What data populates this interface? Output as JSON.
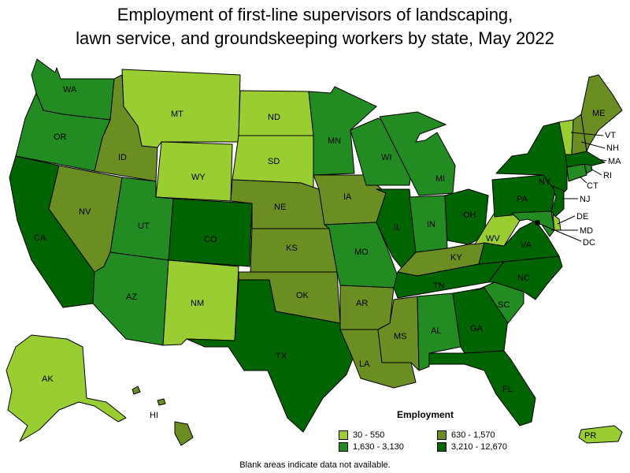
{
  "title_line1": "Employment of first-line supervisors of landscaping,",
  "title_line2": "lawn service, and groundskeeping workers by state, May 2022",
  "colors": {
    "c1": "#9acd32",
    "c2": "#6b8e23",
    "c3": "#228b22",
    "c4": "#006400"
  },
  "legend": {
    "title": "Employment",
    "items": [
      {
        "label": "30 - 550",
        "color": "#9acd32"
      },
      {
        "label": "630 - 1,570",
        "color": "#6b8e23"
      },
      {
        "label": "1,630 - 3,130",
        "color": "#228b22"
      },
      {
        "label": "3,210 - 12,670",
        "color": "#006400"
      }
    ]
  },
  "footnote": "Blank areas indicate data not available.",
  "state_labels": {
    "WA": "WA",
    "OR": "OR",
    "CA": "CA",
    "ID": "ID",
    "NV": "NV",
    "MT": "MT",
    "WY": "WY",
    "UT": "UT",
    "AZ": "AZ",
    "CO": "CO",
    "NM": "NM",
    "ND": "ND",
    "SD": "SD",
    "NE": "NE",
    "KS": "KS",
    "OK": "OK",
    "TX": "TX",
    "MN": "MN",
    "IA": "IA",
    "MO": "MO",
    "AR": "AR",
    "LA": "LA",
    "WI": "WI",
    "IL": "IL",
    "MI": "MI",
    "IN": "IN",
    "OH": "OH",
    "KY": "KY",
    "TN": "TN",
    "MS": "MS",
    "AL": "AL",
    "GA": "GA",
    "FL": "FL",
    "SC": "SC",
    "NC": "NC",
    "VA": "VA",
    "WV": "WV",
    "PA": "PA",
    "NY": "NY",
    "ME": "ME",
    "VT": "VT",
    "NH": "NH",
    "MA": "MA",
    "RI": "RI",
    "CT": "CT",
    "NJ": "NJ",
    "DE": "DE",
    "MD": "MD",
    "DC": "DC",
    "AK": "AK",
    "HI": "HI",
    "PR": "PR"
  },
  "state_class": {
    "WA": "3",
    "OR": "3",
    "CA": "4",
    "ID": "2",
    "NV": "2",
    "MT": "1",
    "WY": "1",
    "UT": "3",
    "AZ": "3",
    "CO": "4",
    "NM": "1",
    "ND": "1",
    "SD": "1",
    "NE": "2",
    "KS": "2",
    "OK": "2",
    "TX": "4",
    "MN": "3",
    "IA": "2",
    "MO": "3",
    "AR": "2",
    "LA": "2",
    "WI": "3",
    "IL": "4",
    "MI": "3",
    "IN": "3",
    "OH": "4",
    "KY": "2",
    "TN": "4",
    "MS": "2",
    "AL": "3",
    "GA": "4",
    "FL": "4",
    "SC": "3",
    "NC": "4",
    "VA": "4",
    "WV": "1",
    "PA": "4",
    "NY": "4",
    "ME": "2",
    "VT": "1",
    "NH": "2",
    "MA": "4",
    "RI": "3",
    "CT": "3",
    "NJ": "4",
    "DE": "1",
    "MD": "3",
    "DC": "4",
    "AK": "1",
    "HI": "2",
    "PR": "1"
  }
}
